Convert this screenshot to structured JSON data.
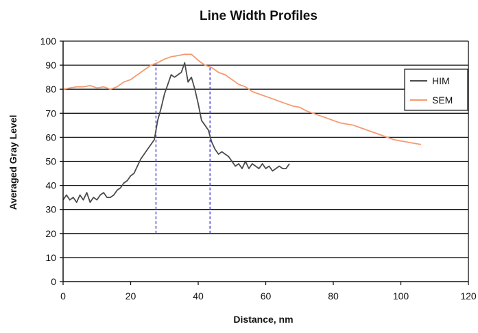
{
  "chart_data": {
    "type": "line",
    "title": "Line Width Profiles",
    "xlabel": "Distance, nm",
    "ylabel": "Averaged Gray Level",
    "xlim": [
      0,
      120
    ],
    "ylim": [
      0,
      100
    ],
    "x_ticks": [
      0,
      20,
      40,
      60,
      80,
      100,
      120
    ],
    "y_ticks": [
      0,
      10,
      20,
      30,
      40,
      50,
      60,
      70,
      80,
      90,
      100
    ],
    "grid": "horizontal",
    "legend_position": "right",
    "series": [
      {
        "name": "HIM",
        "color": "#4a4a4a",
        "x": [
          0,
          1,
          2,
          3,
          4,
          5,
          6,
          7,
          8,
          9,
          10,
          11,
          12,
          13,
          14,
          15,
          16,
          17,
          18,
          19,
          20,
          21,
          22,
          23,
          24,
          25,
          26,
          27,
          28,
          29,
          30,
          31,
          32,
          33,
          34,
          35,
          36,
          37,
          38,
          39,
          40,
          41,
          42,
          43,
          44,
          45,
          46,
          47,
          48,
          49,
          50,
          51,
          52,
          53,
          54,
          55,
          56,
          57,
          58,
          59,
          60,
          61,
          62,
          63,
          64,
          65,
          66,
          67
        ],
        "y": [
          34,
          36,
          34,
          35,
          33,
          36,
          34,
          37,
          33,
          35,
          34,
          36,
          37,
          35,
          35,
          36,
          38,
          39,
          41,
          42,
          44,
          45,
          48,
          51,
          53,
          55,
          57,
          59,
          67,
          72,
          78,
          82,
          86,
          85,
          86,
          87,
          91,
          83,
          85,
          80,
          74,
          67,
          65,
          63,
          58,
          55,
          53,
          54,
          53,
          52,
          50,
          48,
          49,
          47,
          50,
          47,
          49,
          48,
          47,
          49,
          47,
          48,
          46,
          47,
          48,
          47,
          47,
          49
        ]
      },
      {
        "name": "SEM",
        "color": "#f5996e",
        "x": [
          0,
          2,
          4,
          6,
          8,
          10,
          12,
          14,
          16,
          18,
          20,
          22,
          24,
          26,
          28,
          30,
          32,
          34,
          36,
          38,
          40,
          42,
          44,
          46,
          48,
          50,
          52,
          54,
          56,
          58,
          60,
          62,
          64,
          66,
          68,
          70,
          72,
          74,
          76,
          78,
          80,
          82,
          84,
          86,
          88,
          90,
          92,
          94,
          96,
          98,
          100,
          102,
          104,
          106
        ],
        "y": [
          80,
          80.5,
          81,
          81,
          81.5,
          80.5,
          81,
          80,
          81,
          83,
          84,
          86,
          88,
          90,
          91,
          92.5,
          93.5,
          94,
          94.5,
          94.5,
          92,
          90,
          89,
          87,
          86,
          84,
          82,
          81,
          79,
          78,
          77,
          76,
          75,
          74,
          73,
          72.5,
          71,
          70,
          69,
          68,
          67,
          66,
          65.5,
          65,
          64,
          63,
          62,
          61,
          60,
          59,
          58.5,
          58,
          57.5,
          57
        ]
      }
    ],
    "markers": [
      {
        "x": 27.5,
        "y_from": 20,
        "y_to": 92,
        "color": "#3a3ad0",
        "style": "dashed"
      },
      {
        "x": 43.5,
        "y_from": 20,
        "y_to": 90,
        "color": "#3a3ad0",
        "style": "dashed"
      }
    ]
  }
}
